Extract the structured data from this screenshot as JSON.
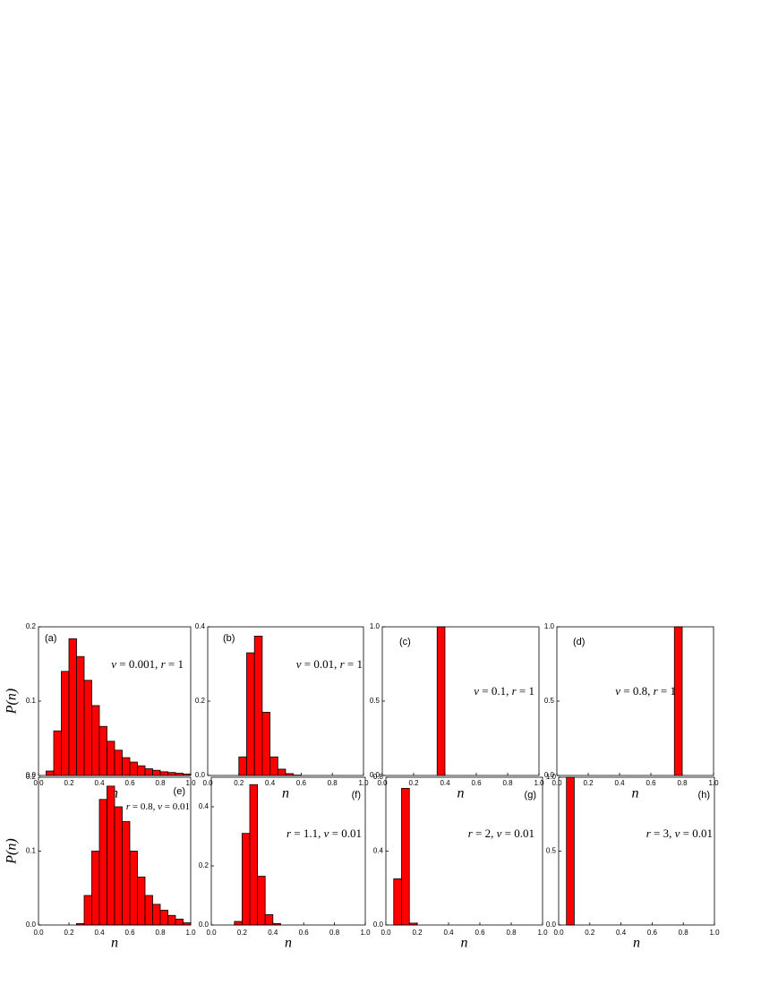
{
  "chart_data": [
    {
      "type": "histogram",
      "panel_label": "(a)",
      "annotation": "v = 0.001, r = 1",
      "xlabel": "n",
      "ylabel": "P(n)",
      "color": "#ff0000",
      "bins": [
        0.05,
        0.1,
        0.15,
        0.2,
        0.25,
        0.3,
        0.35,
        0.4,
        0.45,
        0.5,
        0.55,
        0.6,
        0.65,
        0.7,
        0.75,
        0.8,
        0.85,
        0.9,
        0.95,
        1.0
      ],
      "values": [
        0.006,
        0.06,
        0.14,
        0.184,
        0.16,
        0.128,
        0.094,
        0.066,
        0.046,
        0.034,
        0.024,
        0.018,
        0.013,
        0.009,
        0.007,
        0.005,
        0.004,
        0.003,
        0.002
      ],
      "xlim": [
        0,
        1
      ],
      "xticks": [
        {
          "value": 0,
          "label": "0.0"
        },
        0.2,
        0.4,
        0.6,
        0.8,
        {
          "value": 1,
          "label": "1.0"
        }
      ],
      "ylim": [
        0,
        0.2
      ],
      "yticks": [
        {
          "value": 0,
          "label": "0.0"
        },
        0.1,
        0.2
      ]
    },
    {
      "type": "histogram",
      "panel_label": "(b)",
      "annotation": "v = 0.01, r = 1",
      "xlabel": "n",
      "color": "#ff0000",
      "bins": [
        0.2,
        0.25,
        0.3,
        0.35,
        0.4,
        0.45,
        0.5,
        0.55,
        0.6
      ],
      "values": [
        0.05,
        0.33,
        0.375,
        0.17,
        0.05,
        0.017,
        0.005,
        0.001
      ],
      "xlim": [
        0,
        1
      ],
      "xticks": [
        {
          "value": 0,
          "label": "0.0"
        },
        0.2,
        0.4,
        0.6,
        0.8,
        {
          "value": 1,
          "label": "1.0"
        }
      ],
      "ylim": [
        0,
        0.4
      ],
      "yticks": [
        {
          "value": 0,
          "label": "0.0"
        },
        0.2,
        0.4
      ]
    },
    {
      "type": "histogram",
      "panel_label": "(c)",
      "annotation": "v = 0.1, r = 1",
      "xlabel": "n",
      "color": "#ff0000",
      "bins": [
        0.35,
        0.4
      ],
      "values": [
        1.0
      ],
      "xlim": [
        0,
        1
      ],
      "xticks": [
        {
          "value": 0,
          "label": "0.0"
        },
        0.2,
        0.4,
        0.6,
        0.8,
        {
          "value": 1,
          "label": "1.0"
        }
      ],
      "ylim": [
        0,
        1
      ],
      "yticks": [
        {
          "value": 0,
          "label": "0.0"
        },
        0.5,
        {
          "value": 1,
          "label": "1.0"
        }
      ]
    },
    {
      "type": "histogram",
      "panel_label": "(d)",
      "annotation": "v = 0.8, r = 1",
      "xlabel": "n",
      "color": "#ff0000",
      "bins": [
        0.75,
        0.8
      ],
      "values": [
        1.0
      ],
      "xlim": [
        0,
        1
      ],
      "xticks": [
        {
          "value": 0,
          "label": "0.0"
        },
        0.2,
        0.4,
        0.6,
        0.8,
        {
          "value": 1,
          "label": "1.0"
        }
      ],
      "ylim": [
        0,
        1
      ],
      "yticks": [
        {
          "value": 0,
          "label": "0.0"
        },
        0.5,
        {
          "value": 1,
          "label": "1.0"
        }
      ]
    },
    {
      "type": "histogram",
      "panel_label": "(e)",
      "annotation": "r = 0.8, v = 0.01",
      "xlabel": "n",
      "ylabel": "P(n)",
      "color": "#ff0000",
      "bins": [
        0.25,
        0.3,
        0.35,
        0.4,
        0.45,
        0.5,
        0.55,
        0.6,
        0.65,
        0.7,
        0.75,
        0.8,
        0.85,
        0.9,
        0.95,
        1.0
      ],
      "values": [
        0.002,
        0.04,
        0.1,
        0.17,
        0.188,
        0.16,
        0.14,
        0.1,
        0.065,
        0.04,
        0.028,
        0.02,
        0.013,
        0.008,
        0.003
      ],
      "xlim": [
        0,
        1
      ],
      "xticks": [
        {
          "value": 0,
          "label": "0.0"
        },
        0.2,
        0.4,
        0.6,
        0.8,
        {
          "value": 1,
          "label": "1.0"
        }
      ],
      "ylim": [
        0,
        0.2
      ],
      "yticks": [
        {
          "value": 0,
          "label": "0.0"
        },
        0.1,
        0.2
      ]
    },
    {
      "type": "histogram",
      "panel_label": "(f)",
      "annotation": "r = 1.1, v = 0.01",
      "xlabel": "n",
      "color": "#ff0000",
      "bins": [
        0.15,
        0.2,
        0.25,
        0.3,
        0.35,
        0.4,
        0.45
      ],
      "values": [
        0.012,
        0.31,
        0.475,
        0.165,
        0.035,
        0.005
      ],
      "xlim": [
        0,
        1
      ],
      "xticks": [
        {
          "value": 0,
          "label": "0.0"
        },
        0.2,
        0.4,
        0.6,
        0.8,
        {
          "value": 1,
          "label": "1.0"
        }
      ],
      "ylim": [
        0,
        0.5
      ],
      "yticks": [
        {
          "value": 0,
          "label": "0.0"
        },
        0.2,
        0.4
      ]
    },
    {
      "type": "histogram",
      "panel_label": "(g)",
      "annotation": "r = 2, v = 0.01",
      "xlabel": "n",
      "color": "#ff0000",
      "bins": [
        0.05,
        0.1,
        0.15,
        0.2
      ],
      "values": [
        0.25,
        0.74,
        0.01
      ],
      "xlim": [
        0,
        1
      ],
      "xticks": [
        {
          "value": 0,
          "label": "0.0"
        },
        0.2,
        0.4,
        0.6,
        0.8,
        {
          "value": 1,
          "label": "1.0"
        }
      ],
      "ylim": [
        0,
        0.8
      ],
      "yticks": [
        {
          "value": 0,
          "label": "0.0"
        },
        0.4,
        0.8
      ]
    },
    {
      "type": "histogram",
      "panel_label": "(h)",
      "annotation": "r = 3, v = 0.01",
      "xlabel": "n",
      "color": "#ff0000",
      "bins": [
        0.05,
        0.1
      ],
      "values": [
        1.0
      ],
      "xlim": [
        0,
        1
      ],
      "xticks": [
        {
          "value": 0,
          "label": "0.0"
        },
        0.2,
        0.4,
        0.6,
        0.8,
        {
          "value": 1,
          "label": "1.0"
        }
      ],
      "ylim": [
        0,
        1
      ],
      "yticks": [
        {
          "value": 0,
          "label": "0.0"
        },
        0.5,
        {
          "value": 1,
          "label": "1.0"
        }
      ]
    }
  ]
}
